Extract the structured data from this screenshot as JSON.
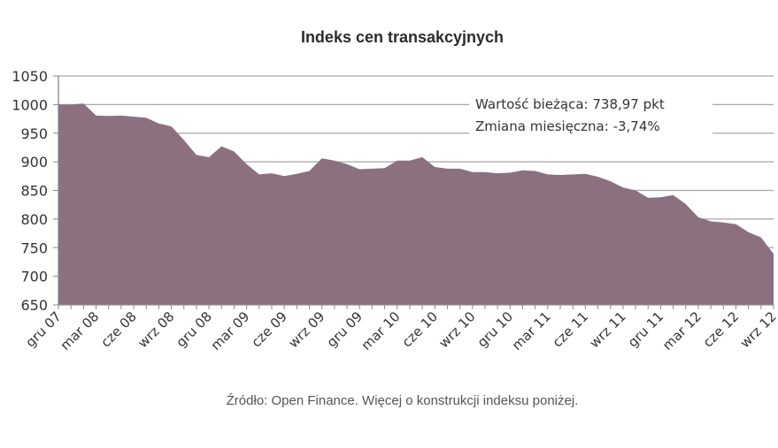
{
  "chart_data": {
    "type": "area",
    "title": "Indeks cen transakcyjnych",
    "xlabel": "",
    "ylabel": "",
    "ylim": [
      650,
      1050
    ],
    "yticks": [
      650,
      700,
      750,
      800,
      850,
      900,
      950,
      1000,
      1050
    ],
    "grid": true,
    "legend": null,
    "fill_color": "#8c7080",
    "x_tick_labels": [
      "gru 07",
      "mar 08",
      "cze 08",
      "wrz 08",
      "gru 08",
      "mar 09",
      "cze 09",
      "wrz 09",
      "gru 09",
      "mar 10",
      "cze 10",
      "wrz 10",
      "gru 10",
      "mar 11",
      "cze 11",
      "wrz 11",
      "gru 11",
      "mar 12",
      "cze 12",
      "wrz 12"
    ],
    "x": [
      "2007-12",
      "2008-01",
      "2008-02",
      "2008-03",
      "2008-04",
      "2008-05",
      "2008-06",
      "2008-07",
      "2008-08",
      "2008-09",
      "2008-10",
      "2008-11",
      "2008-12",
      "2009-01",
      "2009-02",
      "2009-03",
      "2009-04",
      "2009-05",
      "2009-06",
      "2009-07",
      "2009-08",
      "2009-09",
      "2009-10",
      "2009-11",
      "2009-12",
      "2010-01",
      "2010-02",
      "2010-03",
      "2010-04",
      "2010-05",
      "2010-06",
      "2010-07",
      "2010-08",
      "2010-09",
      "2010-10",
      "2010-11",
      "2010-12",
      "2011-01",
      "2011-02",
      "2011-03",
      "2011-04",
      "2011-05",
      "2011-06",
      "2011-07",
      "2011-08",
      "2011-09",
      "2011-10",
      "2011-11",
      "2011-12",
      "2012-01",
      "2012-02",
      "2012-03",
      "2012-04",
      "2012-05",
      "2012-06",
      "2012-07",
      "2012-08",
      "2012-09"
    ],
    "values": [
      1000,
      1000,
      1002,
      981,
      980,
      981,
      979,
      977,
      967,
      962,
      938,
      912,
      908,
      927,
      918,
      896,
      878,
      880,
      875,
      879,
      884,
      906,
      902,
      896,
      887,
      888,
      889,
      902,
      902,
      908,
      891,
      888,
      888,
      882,
      882,
      880,
      881,
      885,
      884,
      878,
      877,
      878,
      879,
      874,
      866,
      855,
      850,
      837,
      838,
      842,
      826,
      803,
      796,
      794,
      791,
      777,
      768,
      739
    ],
    "annotations": [
      "Wartość bieżąca: 738,97 pkt",
      "Zmiana miesięczna: -3,74%"
    ]
  },
  "source_note": "Źródło: Open Finance. Więcej o konstrukcji indeksu poniżej."
}
